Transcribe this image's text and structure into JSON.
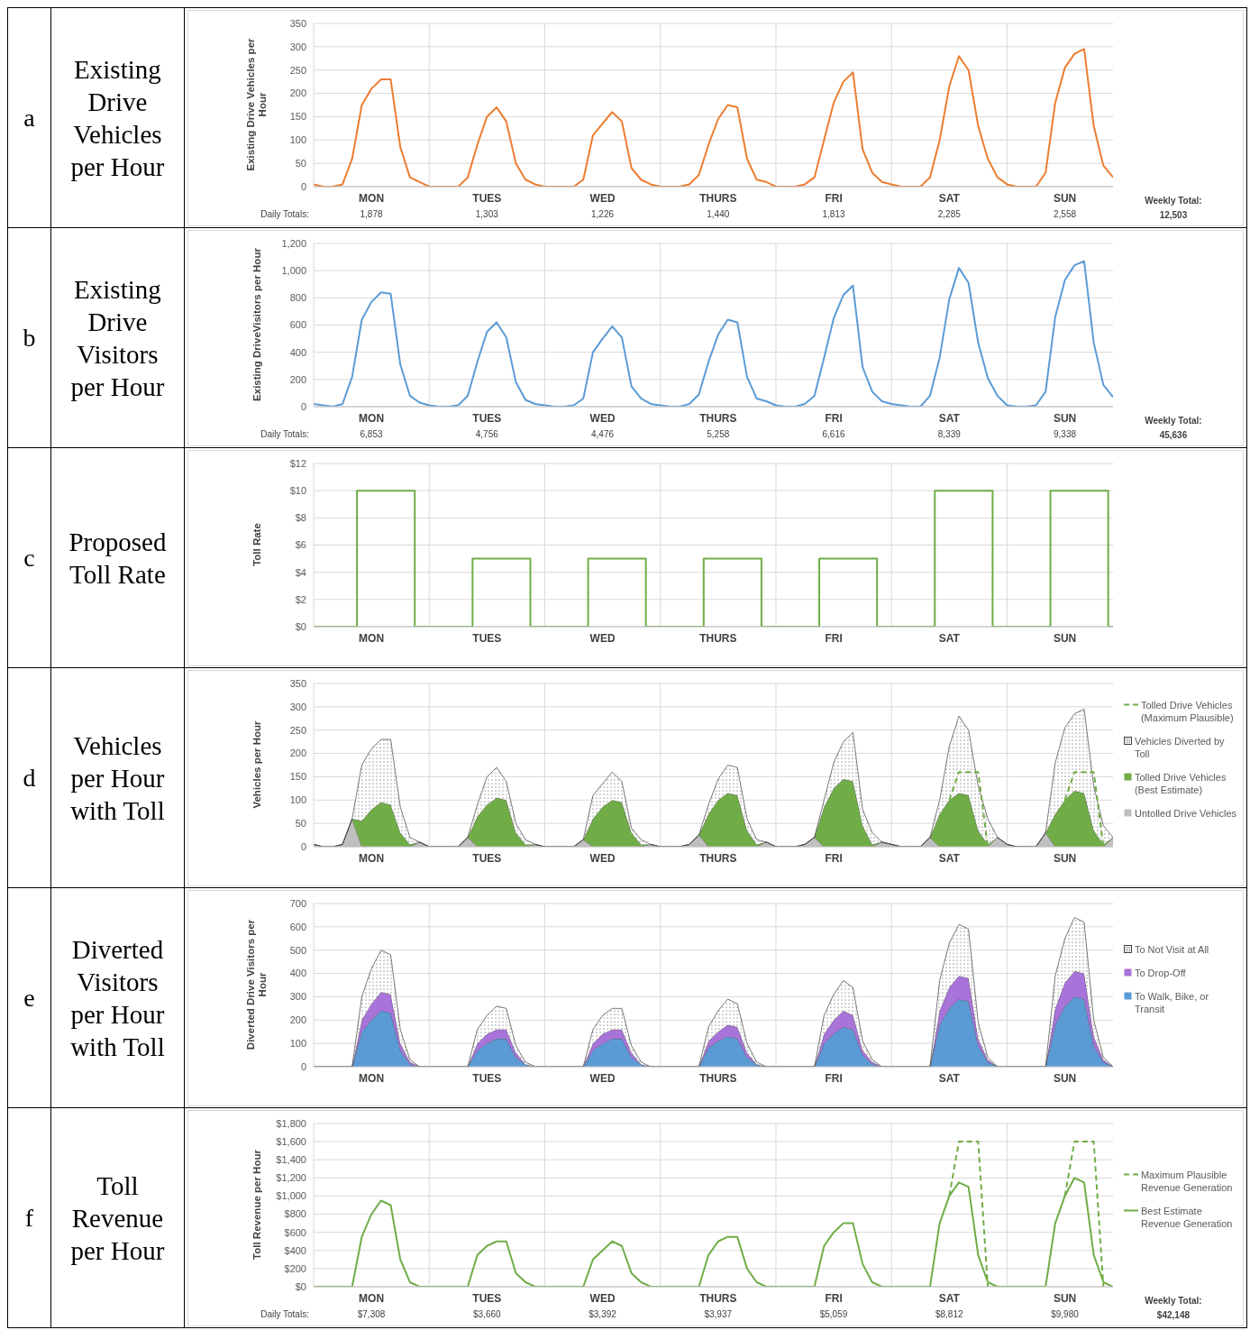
{
  "chart_data": [
    {
      "type": "line",
      "title": "Existing Drive Vehicles per Hour",
      "ylabel": "Existing Drive Vehicles per Hour",
      "categories": [
        null,
        null,
        null,
        null,
        null,
        null,
        "MON",
        null,
        null,
        null,
        null,
        null,
        null,
        null,
        null,
        null,
        null,
        null,
        "TUES",
        null,
        null,
        null,
        null,
        null,
        null,
        null,
        null,
        null,
        null,
        null,
        "WED",
        null,
        null,
        null,
        null,
        null,
        null,
        null,
        null,
        null,
        null,
        null,
        "THURS",
        null,
        null,
        null,
        null,
        null,
        null,
        null,
        null,
        null,
        null,
        null,
        "FRI",
        null,
        null,
        null,
        null,
        null,
        null,
        null,
        null,
        null,
        null,
        null,
        "SAT",
        null,
        null,
        null,
        null,
        null,
        null,
        null,
        null,
        null,
        null,
        null,
        "SUN",
        null,
        null,
        null,
        null,
        null
      ],
      "series": [
        {
          "color": "#ed7d31",
          "values": [
            5,
            0,
            0,
            5,
            60,
            175,
            210,
            230,
            230,
            85,
            20,
            10,
            0,
            0,
            0,
            0,
            20,
            90,
            150,
            170,
            140,
            50,
            15,
            5,
            0,
            0,
            0,
            0,
            15,
            110,
            135,
            160,
            140,
            40,
            15,
            5,
            0,
            0,
            0,
            5,
            25,
            90,
            145,
            175,
            170,
            60,
            15,
            10,
            0,
            0,
            0,
            5,
            20,
            100,
            180,
            225,
            245,
            80,
            30,
            10,
            5,
            0,
            0,
            0,
            20,
            100,
            215,
            280,
            250,
            130,
            60,
            20,
            5,
            0,
            0,
            0,
            30,
            180,
            255,
            285,
            295,
            130,
            45,
            20
          ]
        }
      ],
      "ylim": [
        0,
        350
      ],
      "yticks": [
        0,
        50,
        100,
        150,
        200,
        250,
        300,
        350
      ],
      "grid": true,
      "annotations": [
        "a",
        "Daily Totals:",
        "1,878",
        "1,303",
        "1,226",
        "1,440",
        "1,813",
        "2,285",
        "2,558",
        "Weekly Total:",
        "12,503"
      ]
    },
    {
      "type": "line",
      "title": "Existing Drive Visitors per Hour",
      "ylabel": "Existing DriveVisitors per Hour",
      "categories": [
        null,
        null,
        null,
        null,
        null,
        null,
        "MON",
        null,
        null,
        null,
        null,
        null,
        null,
        null,
        null,
        null,
        null,
        null,
        "TUES",
        null,
        null,
        null,
        null,
        null,
        null,
        null,
        null,
        null,
        null,
        null,
        "WED",
        null,
        null,
        null,
        null,
        null,
        null,
        null,
        null,
        null,
        null,
        null,
        "THURS",
        null,
        null,
        null,
        null,
        null,
        null,
        null,
        null,
        null,
        null,
        null,
        "FRI",
        null,
        null,
        null,
        null,
        null,
        null,
        null,
        null,
        null,
        null,
        null,
        "SAT",
        null,
        null,
        null,
        null,
        null,
        null,
        null,
        null,
        null,
        null,
        null,
        "SUN",
        null,
        null,
        null,
        null,
        null
      ],
      "series": [
        {
          "color": "#5b9bd5",
          "values": [
            20,
            10,
            0,
            20,
            220,
            640,
            770,
            840,
            830,
            310,
            80,
            30,
            10,
            0,
            0,
            10,
            80,
            330,
            550,
            620,
            510,
            180,
            50,
            20,
            10,
            0,
            0,
            10,
            60,
            400,
            500,
            590,
            510,
            150,
            60,
            20,
            10,
            0,
            0,
            20,
            90,
            330,
            530,
            640,
            620,
            220,
            60,
            40,
            10,
            0,
            0,
            20,
            80,
            360,
            650,
            820,
            890,
            290,
            110,
            40,
            20,
            10,
            0,
            0,
            80,
            360,
            790,
            1020,
            910,
            470,
            210,
            80,
            10,
            0,
            0,
            10,
            110,
            660,
            930,
            1040,
            1070,
            470,
            160,
            70
          ]
        }
      ],
      "ylim": [
        0,
        1200
      ],
      "yticks": [
        0,
        200,
        400,
        600,
        800,
        {
          "value": 1000,
          "label": "1,000"
        },
        {
          "value": 1200,
          "label": "1,200"
        }
      ],
      "grid": true,
      "annotations": [
        "b",
        "Daily Totals:",
        "6,853",
        "4,756",
        "4,476",
        "5,258",
        "6,616",
        "8,339",
        "9,338",
        "Weekly Total:",
        "45,636"
      ]
    },
    {
      "type": "step",
      "title": "Proposed Toll Rate",
      "annotations": [
        "c"
      ],
      "ylabel": "Toll Rate",
      "categories": [
        null,
        null,
        null,
        null,
        null,
        null,
        "MON",
        null,
        null,
        null,
        null,
        null,
        null,
        null,
        null,
        null,
        null,
        null,
        "TUES",
        null,
        null,
        null,
        null,
        null,
        null,
        null,
        null,
        null,
        null,
        null,
        "WED",
        null,
        null,
        null,
        null,
        null,
        null,
        null,
        null,
        null,
        null,
        null,
        "THURS",
        null,
        null,
        null,
        null,
        null,
        null,
        null,
        null,
        null,
        null,
        null,
        "FRI",
        null,
        null,
        null,
        null,
        null,
        null,
        null,
        null,
        null,
        null,
        null,
        "SAT",
        null,
        null,
        null,
        null,
        null,
        null,
        null,
        null,
        null,
        null,
        null,
        "SUN",
        null,
        null,
        null,
        null,
        null
      ],
      "series": [
        {
          "color": "#70ad47",
          "values": [
            0,
            0,
            0,
            0,
            0,
            10,
            10,
            10,
            10,
            10,
            10,
            0,
            0,
            0,
            0,
            0,
            0,
            5,
            5,
            5,
            5,
            5,
            5,
            0,
            0,
            0,
            0,
            0,
            0,
            5,
            5,
            5,
            5,
            5,
            5,
            0,
            0,
            0,
            0,
            0,
            0,
            5,
            5,
            5,
            5,
            5,
            5,
            0,
            0,
            0,
            0,
            0,
            0,
            5,
            5,
            5,
            5,
            5,
            5,
            0,
            0,
            0,
            0,
            0,
            0,
            10,
            10,
            10,
            10,
            10,
            10,
            0,
            0,
            0,
            0,
            0,
            0,
            10,
            10,
            10,
            10,
            10,
            10,
            0
          ]
        }
      ],
      "ylim": [
        0,
        12
      ],
      "yticks": [
        {
          "value": 0,
          "label": "$0"
        },
        {
          "value": 2,
          "label": "$2"
        },
        {
          "value": 4,
          "label": "$4"
        },
        {
          "value": 6,
          "label": "$6"
        },
        {
          "value": 8,
          "label": "$8"
        },
        {
          "value": 10,
          "label": "$10"
        },
        {
          "value": 12,
          "label": "$12"
        }
      ],
      "grid": true
    },
    {
      "type": "area",
      "title": "Vehicles per Hour with Toll",
      "annotations": [
        "d"
      ],
      "ylabel": "Vehicles per Hour",
      "stacked": true,
      "legend": "right",
      "categories": [
        null,
        null,
        null,
        null,
        null,
        null,
        "MON",
        null,
        null,
        null,
        null,
        null,
        null,
        null,
        null,
        null,
        null,
        null,
        "TUES",
        null,
        null,
        null,
        null,
        null,
        null,
        null,
        null,
        null,
        null,
        null,
        "WED",
        null,
        null,
        null,
        null,
        null,
        null,
        null,
        null,
        null,
        null,
        null,
        "THURS",
        null,
        null,
        null,
        null,
        null,
        null,
        null,
        null,
        null,
        null,
        null,
        "FRI",
        null,
        null,
        null,
        null,
        null,
        null,
        null,
        null,
        null,
        null,
        null,
        "SAT",
        null,
        null,
        null,
        null,
        null,
        null,
        null,
        null,
        null,
        null,
        null,
        "SUN",
        null,
        null,
        null,
        null,
        null
      ],
      "series": [
        {
          "name": "Untolled Drive Vehicles",
          "color": "#bfbfbf",
          "values": [
            5,
            0,
            0,
            5,
            60,
            0,
            0,
            0,
            0,
            0,
            0,
            10,
            0,
            0,
            0,
            0,
            20,
            0,
            0,
            0,
            0,
            0,
            0,
            5,
            0,
            0,
            0,
            0,
            15,
            0,
            0,
            0,
            0,
            0,
            0,
            5,
            0,
            0,
            0,
            5,
            25,
            0,
            0,
            0,
            0,
            0,
            0,
            10,
            0,
            0,
            0,
            5,
            20,
            0,
            0,
            0,
            0,
            0,
            0,
            10,
            5,
            0,
            0,
            0,
            20,
            0,
            0,
            0,
            0,
            0,
            0,
            20,
            5,
            0,
            0,
            0,
            30,
            0,
            0,
            0,
            0,
            0,
            0,
            20
          ]
        },
        {
          "name": "Tolled Drive Vehicles (Best Estimate)",
          "color": "#70ad47",
          "values": [
            0,
            0,
            0,
            0,
            0,
            55,
            80,
            95,
            90,
            30,
            5,
            0,
            0,
            0,
            0,
            0,
            0,
            65,
            90,
            105,
            100,
            30,
            5,
            0,
            0,
            0,
            0,
            0,
            0,
            60,
            85,
            100,
            95,
            30,
            5,
            0,
            0,
            0,
            0,
            0,
            0,
            70,
            100,
            115,
            110,
            35,
            5,
            0,
            0,
            0,
            0,
            0,
            0,
            85,
            125,
            145,
            140,
            45,
            5,
            0,
            0,
            0,
            0,
            0,
            0,
            70,
            100,
            115,
            110,
            35,
            5,
            0,
            0,
            0,
            0,
            0,
            0,
            70,
            100,
            120,
            115,
            35,
            5,
            0
          ]
        },
        {
          "name": "Vehicles Diverted by Toll",
          "color": "#ffffff",
          "values": [
            0,
            0,
            0,
            0,
            0,
            120,
            130,
            135,
            140,
            55,
            15,
            0,
            0,
            0,
            0,
            0,
            0,
            25,
            60,
            65,
            40,
            20,
            10,
            0,
            0,
            0,
            0,
            0,
            0,
            50,
            50,
            60,
            45,
            10,
            10,
            0,
            0,
            0,
            0,
            0,
            0,
            20,
            45,
            60,
            60,
            25,
            10,
            0,
            0,
            0,
            0,
            0,
            0,
            15,
            55,
            80,
            105,
            35,
            25,
            0,
            0,
            0,
            0,
            0,
            0,
            30,
            115,
            165,
            140,
            95,
            55,
            0,
            0,
            0,
            0,
            0,
            0,
            110,
            155,
            165,
            180,
            95,
            40,
            0
          ]
        },
        {
          "name": "Tolled Drive Vehicles (Maximum Plausible)",
          "type": "line",
          "line_style": "dashed",
          "color": "#70ad47",
          "values": [
            null,
            null,
            null,
            null,
            null,
            null,
            null,
            null,
            null,
            null,
            null,
            null,
            null,
            null,
            null,
            null,
            null,
            null,
            null,
            null,
            null,
            null,
            null,
            null,
            null,
            null,
            null,
            null,
            null,
            null,
            null,
            null,
            null,
            null,
            null,
            null,
            null,
            null,
            null,
            null,
            null,
            null,
            null,
            null,
            null,
            null,
            null,
            null,
            null,
            null,
            null,
            null,
            null,
            null,
            null,
            null,
            null,
            null,
            null,
            null,
            null,
            null,
            null,
            null,
            null,
            null,
            100,
            160,
            160,
            160,
            0,
            null,
            null,
            null,
            null,
            null,
            null,
            null,
            100,
            160,
            160,
            160,
            0,
            null
          ]
        }
      ],
      "ylim": [
        0,
        350
      ],
      "yticks": [
        0,
        50,
        100,
        150,
        200,
        250,
        300,
        350
      ],
      "grid": true
    },
    {
      "type": "area",
      "title": "Diverted Visitors per Hour with Toll",
      "annotations": [
        "e"
      ],
      "ylabel": "Diverted Drive Visitors per Hour",
      "stacked": true,
      "legend": "right",
      "categories": [
        null,
        null,
        null,
        null,
        null,
        null,
        "MON",
        null,
        null,
        null,
        null,
        null,
        null,
        null,
        null,
        null,
        null,
        null,
        "TUES",
        null,
        null,
        null,
        null,
        null,
        null,
        null,
        null,
        null,
        null,
        null,
        "WED",
        null,
        null,
        null,
        null,
        null,
        null,
        null,
        null,
        null,
        null,
        null,
        "THURS",
        null,
        null,
        null,
        null,
        null,
        null,
        null,
        null,
        null,
        null,
        null,
        "FRI",
        null,
        null,
        null,
        null,
        null,
        null,
        null,
        null,
        null,
        null,
        null,
        "SAT",
        null,
        null,
        null,
        null,
        null,
        null,
        null,
        null,
        null,
        null,
        null,
        "SUN",
        null,
        null,
        null,
        null,
        null
      ],
      "series": [
        {
          "name": "To Walk, Bike, or Transit",
          "color": "#5b9bd5",
          "values": [
            0,
            0,
            0,
            0,
            0,
            150,
            200,
            240,
            230,
            70,
            10,
            0,
            0,
            0,
            0,
            0,
            0,
            70,
            100,
            120,
            120,
            40,
            10,
            0,
            0,
            0,
            0,
            0,
            0,
            70,
            100,
            120,
            120,
            40,
            10,
            0,
            0,
            0,
            0,
            0,
            0,
            80,
            110,
            130,
            120,
            40,
            10,
            0,
            0,
            0,
            0,
            0,
            0,
            100,
            140,
            170,
            160,
            50,
            10,
            0,
            0,
            0,
            0,
            0,
            0,
            180,
            250,
            290,
            280,
            90,
            20,
            0,
            0,
            0,
            0,
            0,
            0,
            180,
            260,
            300,
            290,
            90,
            20,
            0
          ]
        },
        {
          "name": "To Drop-Off",
          "color": "#a874d9",
          "values": [
            0,
            0,
            0,
            0,
            0,
            50,
            70,
            80,
            80,
            30,
            10,
            0,
            0,
            0,
            0,
            0,
            0,
            30,
            40,
            40,
            40,
            20,
            0,
            0,
            0,
            0,
            0,
            0,
            0,
            30,
            40,
            40,
            40,
            20,
            0,
            0,
            0,
            0,
            0,
            0,
            0,
            30,
            40,
            50,
            50,
            20,
            0,
            0,
            0,
            0,
            0,
            0,
            0,
            40,
            60,
            70,
            60,
            20,
            10,
            0,
            0,
            0,
            0,
            0,
            0,
            60,
            90,
            100,
            100,
            30,
            10,
            0,
            0,
            0,
            0,
            0,
            0,
            70,
            100,
            110,
            110,
            40,
            10,
            0
          ]
        },
        {
          "name": "To Not Visit at All",
          "color": "#ffffff",
          "values": [
            0,
            0,
            0,
            0,
            0,
            100,
            150,
            180,
            170,
            60,
            10,
            0,
            0,
            0,
            0,
            0,
            0,
            60,
            80,
            100,
            90,
            30,
            10,
            0,
            0,
            0,
            0,
            0,
            0,
            60,
            80,
            90,
            90,
            30,
            10,
            0,
            0,
            0,
            0,
            0,
            0,
            60,
            90,
            110,
            100,
            40,
            10,
            0,
            0,
            0,
            0,
            0,
            0,
            80,
            110,
            130,
            120,
            40,
            10,
            0,
            0,
            0,
            0,
            0,
            0,
            130,
            190,
            220,
            210,
            70,
            10,
            0,
            0,
            0,
            0,
            0,
            0,
            140,
            190,
            230,
            220,
            70,
            10,
            0
          ]
        }
      ],
      "ylim": [
        0,
        700
      ],
      "yticks": [
        0,
        100,
        200,
        300,
        400,
        500,
        600,
        700
      ],
      "grid": true
    },
    {
      "type": "line",
      "title": "Toll Revenue per Hour",
      "ylabel": "Toll Revenue per Hour",
      "legend": "right",
      "categories": [
        null,
        null,
        null,
        null,
        null,
        null,
        "MON",
        null,
        null,
        null,
        null,
        null,
        null,
        null,
        null,
        null,
        null,
        null,
        "TUES",
        null,
        null,
        null,
        null,
        null,
        null,
        null,
        null,
        null,
        null,
        null,
        "WED",
        null,
        null,
        null,
        null,
        null,
        null,
        null,
        null,
        null,
        null,
        null,
        "THURS",
        null,
        null,
        null,
        null,
        null,
        null,
        null,
        null,
        null,
        null,
        null,
        "FRI",
        null,
        null,
        null,
        null,
        null,
        null,
        null,
        null,
        null,
        null,
        null,
        "SAT",
        null,
        null,
        null,
        null,
        null,
        null,
        null,
        null,
        null,
        null,
        null,
        "SUN",
        null,
        null,
        null,
        null,
        null
      ],
      "series": [
        {
          "name": "Best Estimate Revenue Generation",
          "color": "#70ad47",
          "values": [
            0,
            0,
            0,
            0,
            0,
            550,
            800,
            950,
            900,
            300,
            50,
            0,
            0,
            0,
            0,
            0,
            0,
            350,
            450,
            500,
            500,
            150,
            50,
            0,
            0,
            0,
            0,
            0,
            0,
            300,
            400,
            500,
            450,
            150,
            50,
            0,
            0,
            0,
            0,
            0,
            0,
            350,
            500,
            550,
            550,
            200,
            50,
            0,
            0,
            0,
            0,
            0,
            0,
            450,
            600,
            700,
            700,
            250,
            50,
            0,
            0,
            0,
            0,
            0,
            0,
            700,
            1000,
            1150,
            1100,
            350,
            50,
            0,
            0,
            0,
            0,
            0,
            0,
            700,
            1000,
            1200,
            1150,
            350,
            50,
            0
          ]
        },
        {
          "name": "Maximum Plausible Revenue Generation",
          "line_style": "dashed",
          "color": "#70ad47",
          "values": [
            null,
            null,
            null,
            null,
            null,
            null,
            null,
            null,
            null,
            null,
            null,
            null,
            null,
            null,
            null,
            null,
            null,
            null,
            null,
            null,
            null,
            null,
            null,
            null,
            null,
            null,
            null,
            null,
            null,
            null,
            null,
            null,
            null,
            null,
            null,
            null,
            null,
            null,
            null,
            null,
            null,
            null,
            null,
            null,
            null,
            null,
            null,
            null,
            null,
            null,
            null,
            null,
            null,
            null,
            null,
            null,
            null,
            null,
            null,
            null,
            null,
            null,
            null,
            null,
            null,
            null,
            1000,
            1600,
            1600,
            1600,
            0,
            null,
            null,
            null,
            null,
            null,
            null,
            null,
            1000,
            1600,
            1600,
            1600,
            0,
            null
          ]
        }
      ],
      "ylim": [
        0,
        1800
      ],
      "yticks": [
        {
          "value": 0,
          "label": "$0"
        },
        {
          "value": 200,
          "label": "$200"
        },
        {
          "value": 400,
          "label": "$400"
        },
        {
          "value": 600,
          "label": "$600"
        },
        {
          "value": 800,
          "label": "$800"
        },
        {
          "value": 1000,
          "label": "$1,000"
        },
        {
          "value": 1200,
          "label": "$1,200"
        },
        {
          "value": 1400,
          "label": "$1,400"
        },
        {
          "value": 1600,
          "label": "$1,600"
        },
        {
          "value": 1800,
          "label": "$1,800"
        }
      ],
      "grid": true,
      "annotations": [
        "f",
        "Daily Totals:",
        "$7,308",
        "$3,660",
        "$3,392",
        "$3,937",
        "$5,059",
        "$8,812",
        "$9,980",
        "Weekly Total:",
        "$42,148"
      ]
    }
  ]
}
